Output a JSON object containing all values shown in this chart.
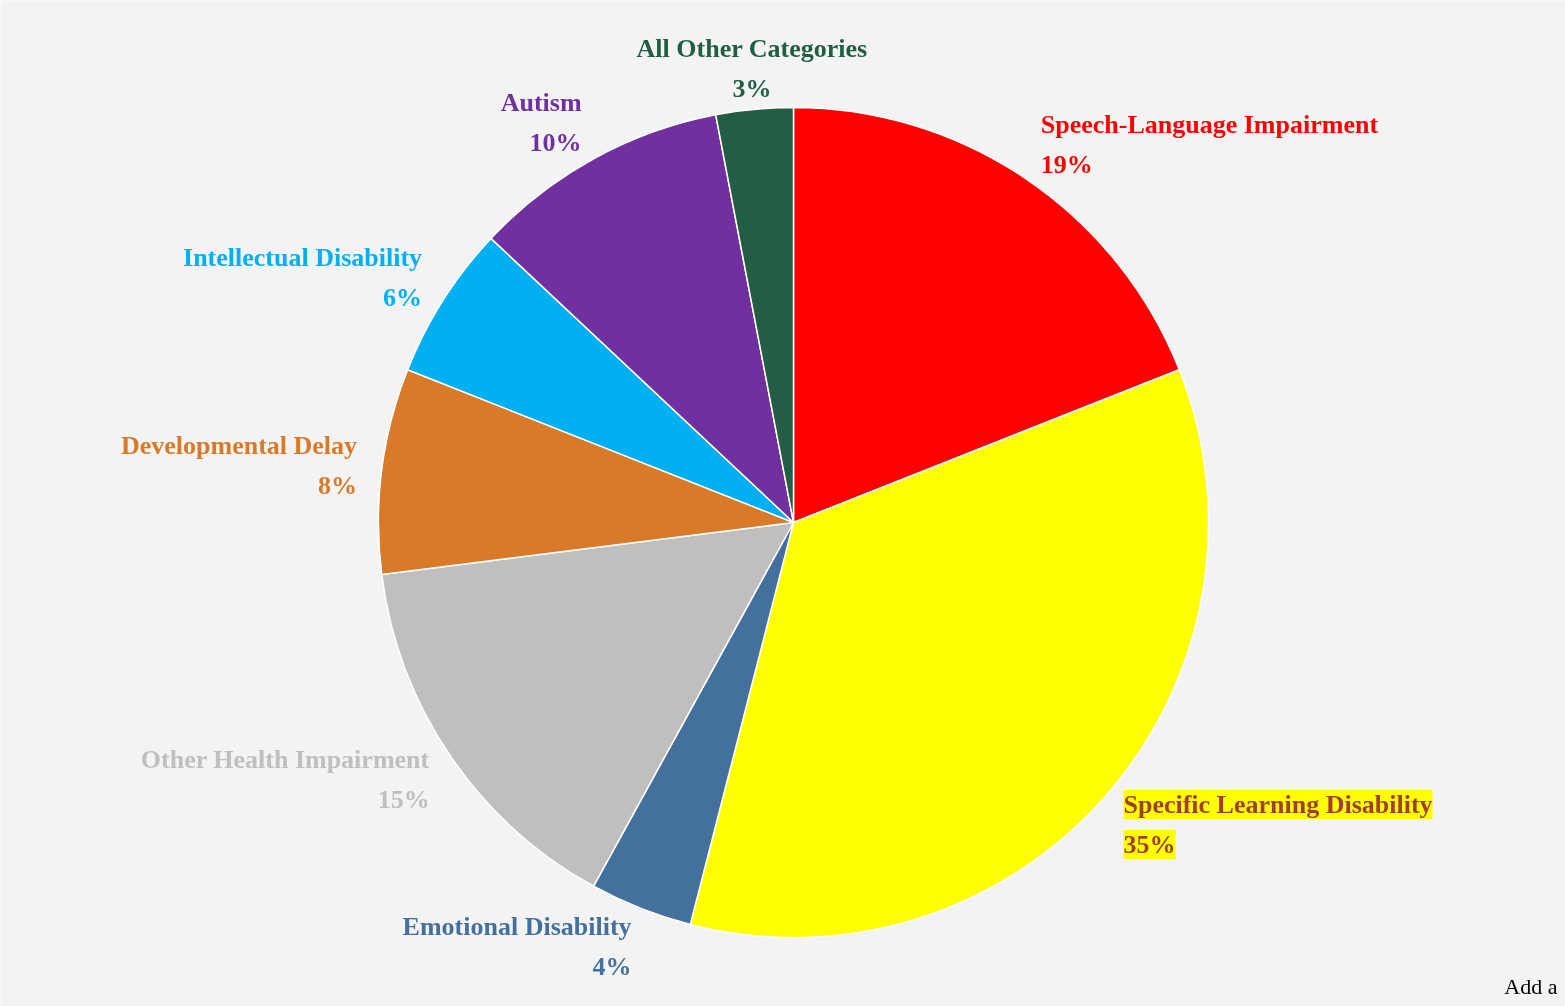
{
  "chart_data": {
    "type": "pie",
    "categories": [
      "Speech-Language Impairment",
      "Specific Learning Disability",
      "Emotional Disability",
      "Other Health Impairment",
      "Developmental Delay",
      "Intellectual Disability",
      "Autism",
      "All Other Categories"
    ],
    "values": [
      19,
      35,
      4,
      15,
      8,
      6,
      10,
      3
    ],
    "value_labels": [
      "19%",
      "35%",
      "4%",
      "15%",
      "8%",
      "6%",
      "10%",
      "3%"
    ],
    "colors": [
      "#ff0000",
      "#ffff00",
      "#44709d",
      "#bfbfbf",
      "#d87a28",
      "#00b0f0",
      "#7030a0",
      "#215e44"
    ],
    "annotations": [
      "Add a"
    ]
  }
}
